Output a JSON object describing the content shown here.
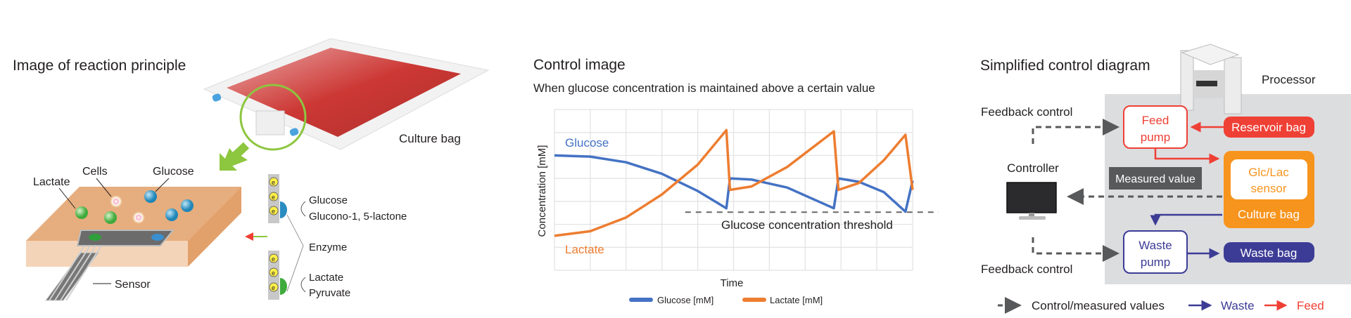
{
  "left": {
    "title": "Image of reaction principle",
    "culture_bag_label": "Culture bag",
    "labels": {
      "lactate": "Lactate",
      "cells": "Cells",
      "glucose": "Glucose",
      "sensor": "Sensor"
    },
    "reaction": {
      "glucose": "Glucose",
      "gluconolactone": "Glucono-1, 5-lactone",
      "enzyme": "Enzyme",
      "lactate": "Lactate",
      "pyruvate": "Pyruvate",
      "electron": "e"
    },
    "colors": {
      "bag_red": "#c8231f",
      "highlight_green": "#8dc63f",
      "medium": "#e9b185"
    }
  },
  "middle": {
    "title": "Control image",
    "subtitle": "When glucose concentration is maintained above a certain value"
  },
  "chart_data": {
    "type": "line",
    "xlabel": "Time",
    "ylabel": "Concentration [mM]",
    "xlim": [
      0,
      10
    ],
    "ylim": [
      0,
      7
    ],
    "grid": true,
    "legend_position": "bottom",
    "series": [
      {
        "name": "Glucose [mM]",
        "inline_label": "Glucose",
        "color": "#4472c4",
        "points": [
          [
            0,
            5.0
          ],
          [
            1,
            4.95
          ],
          [
            2,
            4.7
          ],
          [
            3,
            4.2
          ],
          [
            4,
            3.45
          ],
          [
            4.8,
            2.7
          ],
          [
            4.9,
            4.0
          ],
          [
            5.5,
            3.95
          ],
          [
            6.5,
            3.6
          ],
          [
            7.8,
            2.7
          ],
          [
            7.93,
            4.0
          ],
          [
            8.5,
            3.85
          ],
          [
            9.2,
            3.4
          ],
          [
            9.8,
            2.55
          ],
          [
            10,
            3.9
          ]
        ]
      },
      {
        "name": "Lactate [mM]",
        "inline_label": "Lactate",
        "color": "#ed7d31",
        "points": [
          [
            0,
            1.5
          ],
          [
            1,
            1.7
          ],
          [
            2,
            2.3
          ],
          [
            3,
            3.3
          ],
          [
            4,
            4.6
          ],
          [
            4.8,
            6.1
          ],
          [
            4.9,
            3.5
          ],
          [
            5.5,
            3.65
          ],
          [
            6.5,
            4.5
          ],
          [
            7.8,
            6.05
          ],
          [
            7.93,
            3.5
          ],
          [
            8.5,
            3.8
          ],
          [
            9.2,
            4.8
          ],
          [
            9.8,
            5.9
          ],
          [
            10,
            3.5
          ]
        ]
      }
    ],
    "threshold": {
      "label": "Glucose concentration threshold",
      "y": 2.53,
      "x_from": 3.65
    }
  },
  "right": {
    "title": "Simplified control diagram",
    "processor": "Processor",
    "feedback_top": "Feedback control",
    "feedback_bottom": "Feedback control",
    "controller": "Controller",
    "feed_pump": [
      "Feed",
      "pump"
    ],
    "reservoir_bag": "Reservoir bag",
    "sensor": [
      "Glc/Lac",
      "sensor"
    ],
    "culture_bag": "Culture bag",
    "measured_value": "Measured value",
    "waste_pump": [
      "Waste",
      "pump"
    ],
    "waste_bag": "Waste bag",
    "legend": {
      "control": "Control/measured values",
      "waste": "Waste",
      "feed": "Feed"
    },
    "colors": {
      "feed": "#ef4035",
      "waste": "#3c3c96",
      "culture": "#f7941d",
      "dashed": "#58595b",
      "processor_bg": "#dcdddf"
    }
  }
}
